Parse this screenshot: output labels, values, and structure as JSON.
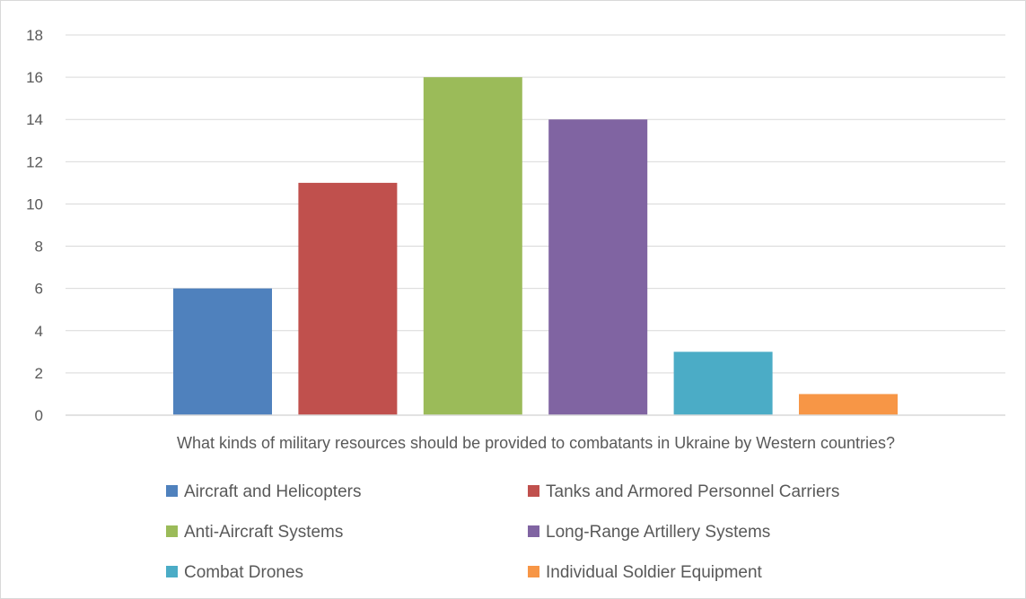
{
  "chart_data": {
    "type": "bar",
    "title": "",
    "xlabel": "What kinds of military resources should be provided to combatants in Ukraine by Western countries?",
    "ylabel": "",
    "ylim": [
      0,
      18
    ],
    "yticks": [
      0,
      2,
      4,
      6,
      8,
      10,
      12,
      14,
      16,
      18
    ],
    "grid": true,
    "legend_position": "bottom",
    "series": [
      {
        "name": "Aircraft and Helicopters",
        "value": 6,
        "color": "#4F81BD"
      },
      {
        "name": "Tanks and Armored Personnel Carriers",
        "value": 11,
        "color": "#C0504D"
      },
      {
        "name": "Anti-Aircraft Systems",
        "value": 16,
        "color": "#9BBB59"
      },
      {
        "name": "Long-Range Artillery Systems",
        "value": 14,
        "color": "#8064A2"
      },
      {
        "name": "Combat Drones",
        "value": 3,
        "color": "#4BACC6"
      },
      {
        "name": "Individual Soldier Equipment",
        "value": 1,
        "color": "#F79646"
      }
    ]
  }
}
